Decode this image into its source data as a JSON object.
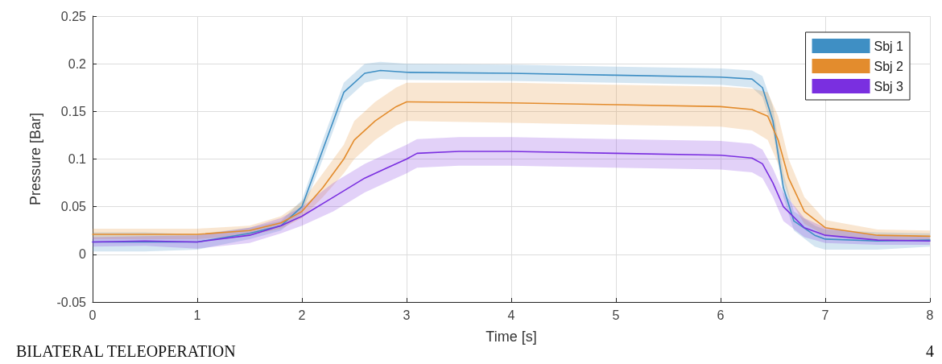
{
  "chart_data": {
    "type": "line",
    "xlabel": "Time [s]",
    "ylabel": "Pressure [Bar]",
    "xlim": [
      0,
      8
    ],
    "xticks": [
      0,
      1,
      2,
      3,
      4,
      5,
      6,
      7,
      8
    ],
    "ylim": [
      -0.05,
      0.25
    ],
    "yticks": [
      -0.05,
      0,
      0.05,
      0.1,
      0.15,
      0.2,
      0.25
    ],
    "grid": true,
    "legend": "top right",
    "marker": "none",
    "line_style": "solid",
    "annotations": [
      "BILATERAL TELEOPERATION",
      "4"
    ],
    "series": [
      {
        "name": "Sbj 1",
        "color": "#3f8fc4",
        "x": [
          0,
          0.5,
          1,
          1.5,
          1.8,
          2,
          2.2,
          2.4,
          2.6,
          2.75,
          3,
          4,
          5,
          6,
          6.3,
          6.4,
          6.5,
          6.6,
          6.7,
          6.9,
          7,
          7.5,
          8
        ],
        "values": [
          0.013,
          0.013,
          0.013,
          0.022,
          0.03,
          0.05,
          0.11,
          0.17,
          0.19,
          0.193,
          0.191,
          0.19,
          0.188,
          0.186,
          0.184,
          0.175,
          0.14,
          0.07,
          0.035,
          0.02,
          0.016,
          0.014,
          0.015
        ],
        "lower": [
          0.003,
          0.003,
          0.005,
          0.016,
          0.025,
          0.043,
          0.1,
          0.16,
          0.18,
          0.184,
          0.183,
          0.182,
          0.18,
          0.178,
          0.175,
          0.165,
          0.13,
          0.06,
          0.025,
          0.008,
          0.005,
          0.005,
          0.008
        ],
        "upper": [
          0.023,
          0.023,
          0.021,
          0.028,
          0.035,
          0.057,
          0.12,
          0.18,
          0.2,
          0.202,
          0.2,
          0.199,
          0.197,
          0.195,
          0.193,
          0.187,
          0.155,
          0.085,
          0.045,
          0.03,
          0.026,
          0.023,
          0.022
        ]
      },
      {
        "name": "Sbj 2",
        "color": "#e38c2d",
        "x": [
          0,
          1,
          1.5,
          1.8,
          2,
          2.2,
          2.4,
          2.5,
          2.7,
          2.9,
          3,
          4,
          5,
          6,
          6.3,
          6.45,
          6.55,
          6.65,
          6.8,
          7,
          7.5,
          8
        ],
        "values": [
          0.021,
          0.021,
          0.025,
          0.033,
          0.045,
          0.07,
          0.1,
          0.12,
          0.14,
          0.155,
          0.16,
          0.159,
          0.157,
          0.155,
          0.152,
          0.145,
          0.12,
          0.08,
          0.045,
          0.028,
          0.02,
          0.019
        ],
        "lower": [
          0.016,
          0.016,
          0.02,
          0.027,
          0.038,
          0.06,
          0.085,
          0.1,
          0.12,
          0.135,
          0.14,
          0.138,
          0.136,
          0.134,
          0.13,
          0.12,
          0.095,
          0.06,
          0.032,
          0.02,
          0.015,
          0.014
        ],
        "upper": [
          0.027,
          0.027,
          0.03,
          0.04,
          0.055,
          0.085,
          0.115,
          0.14,
          0.16,
          0.175,
          0.18,
          0.18,
          0.178,
          0.176,
          0.174,
          0.17,
          0.145,
          0.1,
          0.06,
          0.036,
          0.026,
          0.025
        ]
      },
      {
        "name": "Sbj 3",
        "color": "#7a2fe0",
        "x": [
          0,
          0.5,
          1,
          1.5,
          1.8,
          2,
          2.3,
          2.6,
          2.8,
          3,
          3.1,
          3.5,
          4,
          5,
          6,
          6.3,
          6.4,
          6.5,
          6.6,
          6.8,
          7,
          7.5,
          8
        ],
        "values": [
          0.013,
          0.014,
          0.013,
          0.02,
          0.03,
          0.04,
          0.06,
          0.08,
          0.09,
          0.1,
          0.106,
          0.108,
          0.108,
          0.106,
          0.104,
          0.101,
          0.095,
          0.075,
          0.05,
          0.028,
          0.02,
          0.015,
          0.014
        ],
        "lower": [
          0.008,
          0.009,
          0.006,
          0.012,
          0.022,
          0.03,
          0.045,
          0.065,
          0.075,
          0.085,
          0.091,
          0.093,
          0.093,
          0.091,
          0.089,
          0.086,
          0.08,
          0.06,
          0.035,
          0.018,
          0.012,
          0.01,
          0.01
        ],
        "upper": [
          0.018,
          0.019,
          0.02,
          0.028,
          0.038,
          0.05,
          0.075,
          0.095,
          0.105,
          0.115,
          0.121,
          0.123,
          0.123,
          0.121,
          0.119,
          0.116,
          0.11,
          0.09,
          0.065,
          0.038,
          0.028,
          0.02,
          0.018
        ]
      }
    ]
  }
}
